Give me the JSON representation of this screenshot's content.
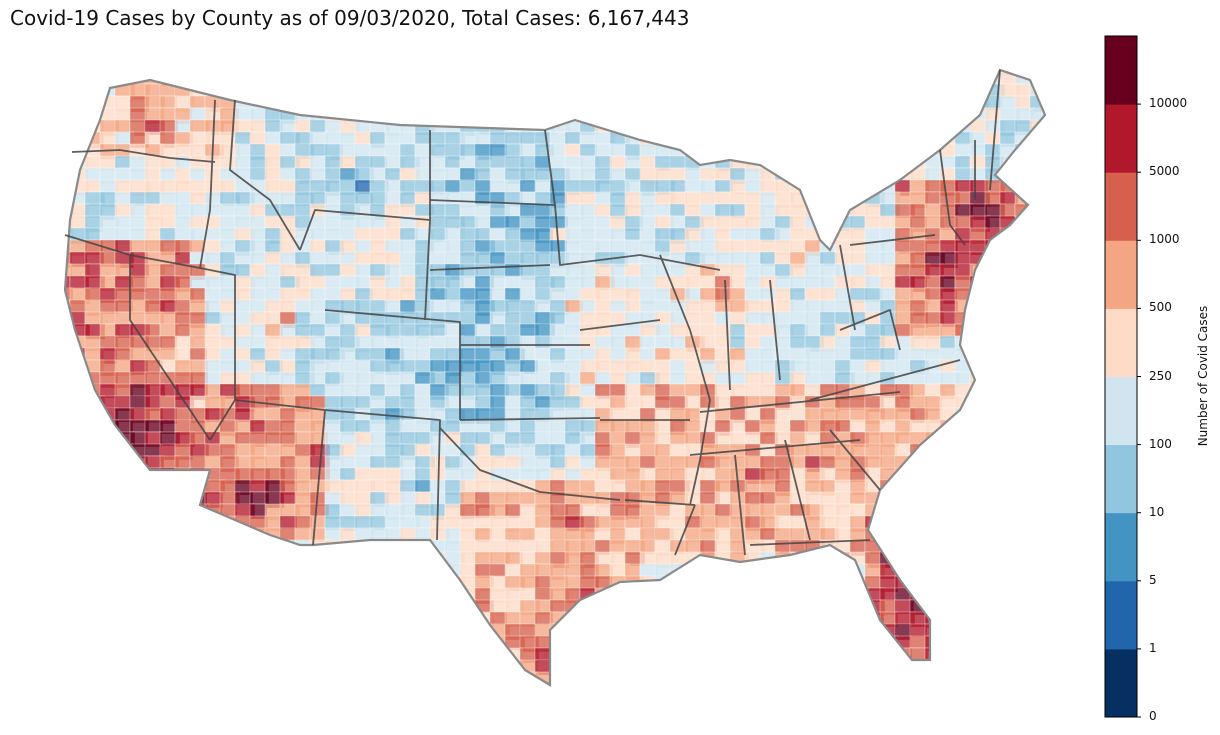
{
  "title": "Covid-19 Cases by County as of 09/03/2020, Total Cases: 6,167,443",
  "colorbar": {
    "label": "Number of Covid Cases",
    "ticks": [
      "0",
      "1",
      "5",
      "10",
      "100",
      "250",
      "500",
      "1000",
      "5000",
      "10000"
    ],
    "colors": [
      "#053061",
      "#2166ac",
      "#4393c3",
      "#92c5de",
      "#d1e5f0",
      "#fddbc7",
      "#f4a582",
      "#d6604d",
      "#b2182b",
      "#67001f"
    ]
  },
  "map": {
    "projection": "contiguous United States, county level choropleth",
    "state_border_color": "#404040",
    "region_shading": [
      {
        "region": "california",
        "level": 9
      },
      {
        "region": "arizona",
        "level": 8
      },
      {
        "region": "florida",
        "level": 8
      },
      {
        "region": "southeast",
        "level": 7
      },
      {
        "region": "texas-south",
        "level": 7
      },
      {
        "region": "northeast",
        "level": 8
      },
      {
        "region": "great-plains",
        "level": 3
      },
      {
        "region": "mountain-west",
        "level": 4
      }
    ]
  }
}
